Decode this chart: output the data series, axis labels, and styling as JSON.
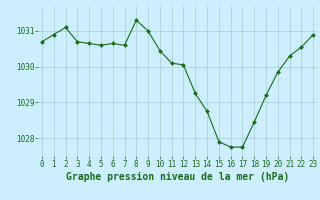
{
  "x": [
    0,
    1,
    2,
    3,
    4,
    5,
    6,
    7,
    8,
    9,
    10,
    11,
    12,
    13,
    14,
    15,
    16,
    17,
    18,
    19,
    20,
    21,
    22,
    23
  ],
  "y": [
    1030.7,
    1030.9,
    1031.1,
    1030.7,
    1030.65,
    1030.6,
    1030.65,
    1030.6,
    1031.3,
    1031.0,
    1030.45,
    1030.1,
    1030.05,
    1029.25,
    1028.75,
    1027.9,
    1027.75,
    1027.75,
    1028.45,
    1029.2,
    1029.85,
    1030.3,
    1030.55,
    1030.9
  ],
  "line_color": "#1a6b1a",
  "marker_color": "#1a6b1a",
  "bg_color": "#cceeff",
  "grid_color": "#aacccc",
  "title": "Graphe pression niveau de la mer (hPa)",
  "xlabel_ticks": [
    0,
    1,
    2,
    3,
    4,
    5,
    6,
    7,
    8,
    9,
    10,
    11,
    12,
    13,
    14,
    15,
    16,
    17,
    18,
    19,
    20,
    21,
    22,
    23
  ],
  "yticks": [
    1028,
    1029,
    1030,
    1031
  ],
  "ylim": [
    1027.5,
    1031.7
  ],
  "xlim": [
    -0.3,
    23.3
  ],
  "title_color": "#1a6b1a",
  "title_fontsize": 7.0,
  "tick_fontsize": 5.5
}
